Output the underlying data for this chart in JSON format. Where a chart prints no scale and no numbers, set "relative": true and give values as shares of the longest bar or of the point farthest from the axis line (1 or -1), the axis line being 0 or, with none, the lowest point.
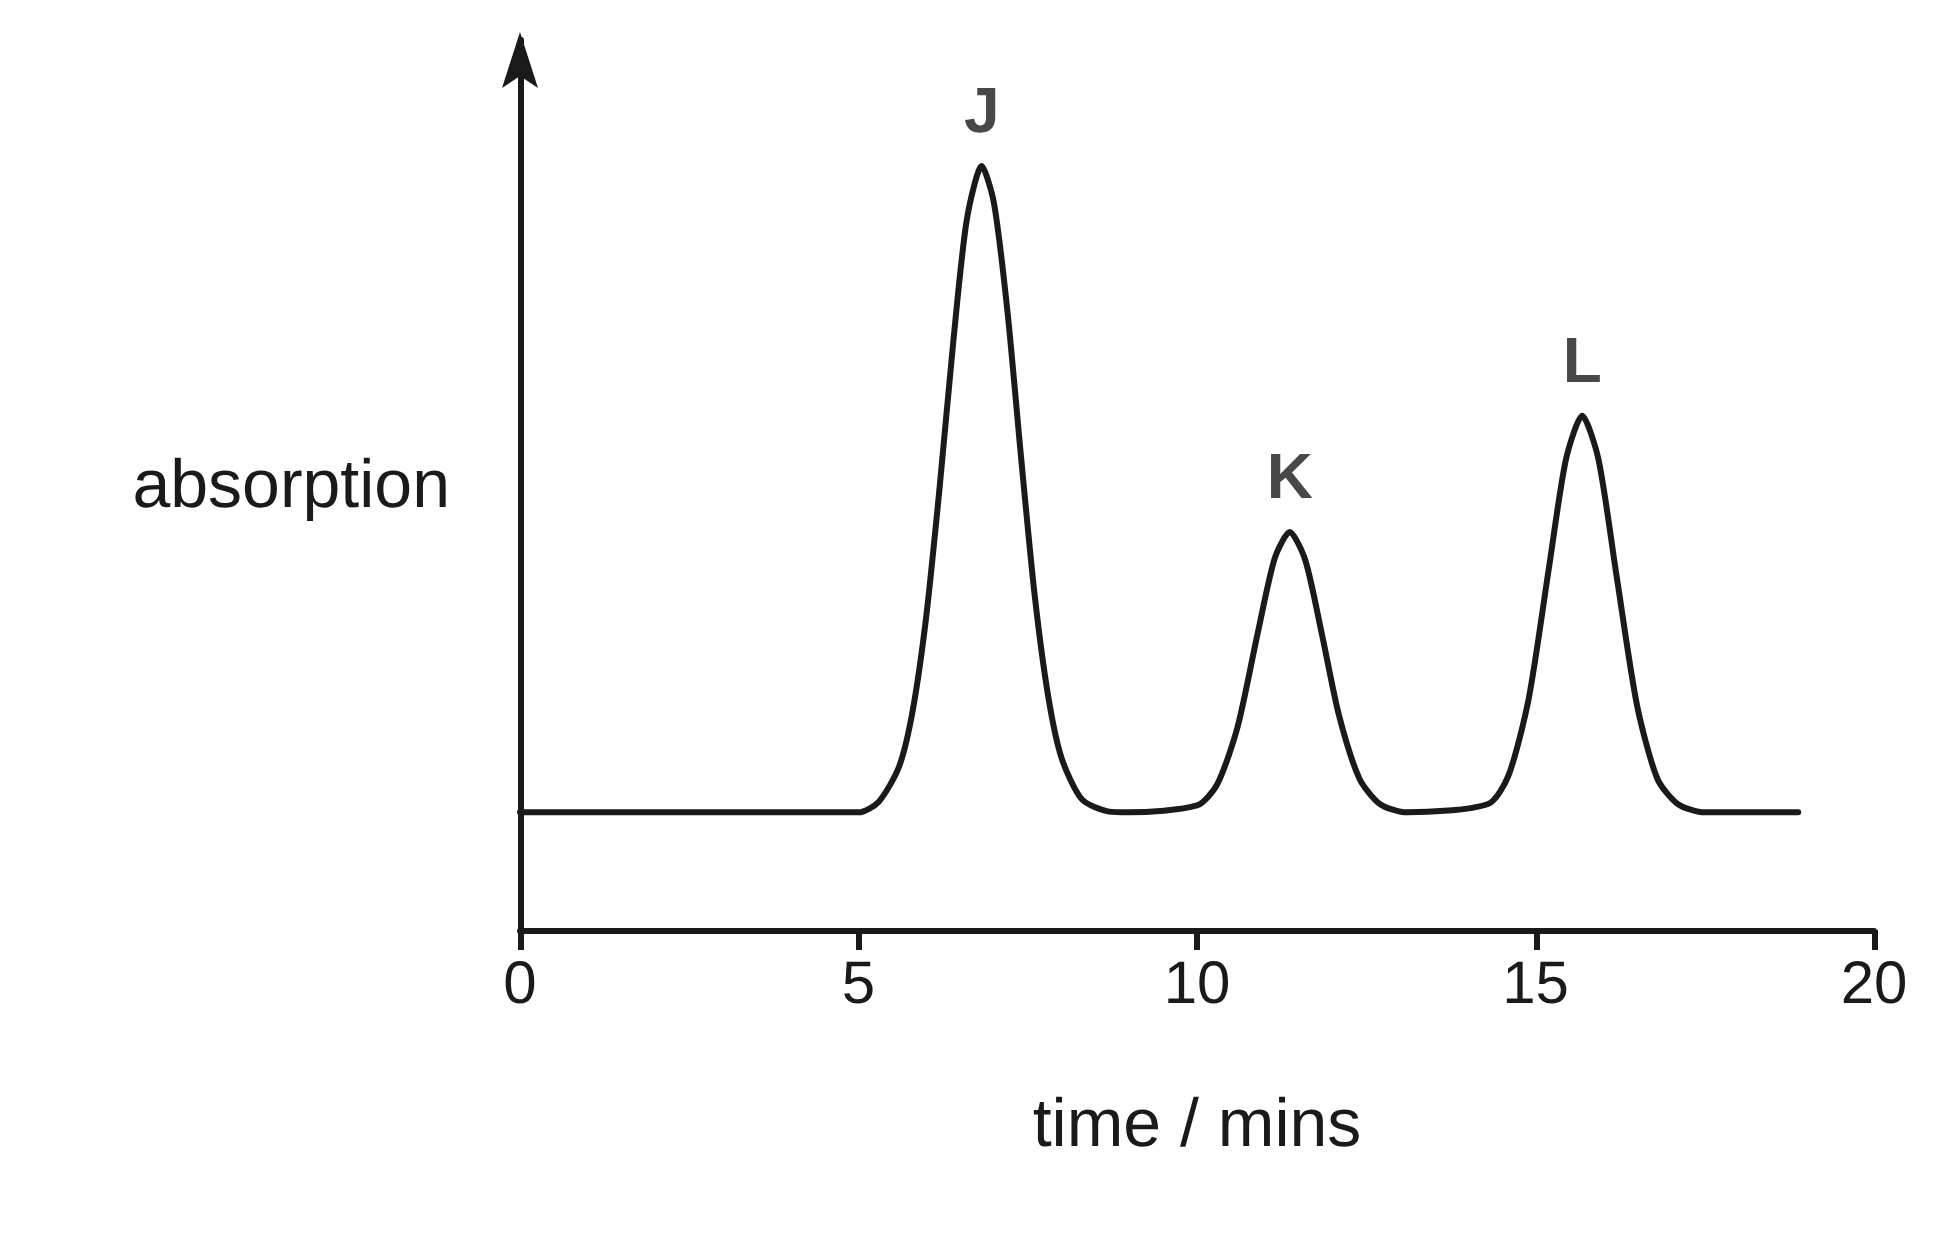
{
  "chart_data": {
    "type": "line",
    "relative": true,
    "xlabel": "time / mins",
    "ylabel": "absorption",
    "xlim": [
      0,
      20
    ],
    "xticks": [
      0,
      5,
      10,
      15,
      20
    ],
    "tick_labels": "x",
    "grid": false,
    "marker": "none",
    "line_style": "solid",
    "color": "#1a1a1a",
    "x": [
      0,
      5.0,
      5.3,
      5.6,
      5.8,
      6.0,
      6.2,
      6.4,
      6.6,
      6.82,
      7.0,
      7.2,
      7.4,
      7.6,
      7.8,
      8.0,
      8.3,
      8.7,
      9.0,
      10.0,
      10.3,
      10.6,
      10.9,
      11.15,
      11.37,
      11.6,
      11.85,
      12.1,
      12.4,
      12.7,
      13.1,
      14.3,
      14.6,
      14.9,
      15.2,
      15.45,
      15.69,
      15.93,
      16.2,
      16.5,
      16.8,
      17.1,
      17.5,
      18.88
    ],
    "values": [
      0.154,
      0.154,
      0.168,
      0.214,
      0.287,
      0.41,
      0.581,
      0.77,
      0.93,
      1,
      0.952,
      0.81,
      0.62,
      0.44,
      0.307,
      0.225,
      0.171,
      0.155,
      0.154,
      0.163,
      0.191,
      0.266,
      0.39,
      0.487,
      0.521,
      0.484,
      0.385,
      0.28,
      0.198,
      0.165,
      0.154,
      0.165,
      0.202,
      0.303,
      0.475,
      0.616,
      0.673,
      0.616,
      0.462,
      0.294,
      0.198,
      0.165,
      0.154,
      0.154
    ],
    "annotations": [
      {
        "text": "J",
        "x": 6.82,
        "y": 1
      },
      {
        "text": "K",
        "x": 11.37,
        "y": 0.521
      },
      {
        "text": "L",
        "x": 15.69,
        "y": 0.673
      }
    ]
  }
}
